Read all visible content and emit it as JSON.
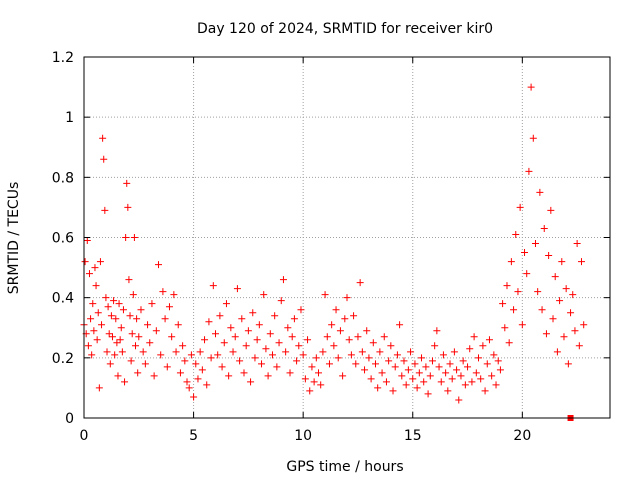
{
  "chart_data": {
    "type": "scatter",
    "title": "Day 120 of 2024, SRMTID for receiver kir0",
    "xlabel": "GPS time / hours",
    "ylabel": "SRMTID / TECUs",
    "xlim": [
      0,
      24
    ],
    "ylim": [
      0,
      1.2
    ],
    "xticks": [
      0,
      5,
      10,
      15,
      20
    ],
    "xtick_labels": [
      "0",
      "5",
      "10",
      "15",
      "20"
    ],
    "yticks": [
      0,
      0.2,
      0.4,
      0.6,
      0.8,
      1,
      1.2
    ],
    "ytick_labels": [
      "0",
      "0.2",
      "0.4",
      "0.6",
      "0.8",
      "1",
      "1.2"
    ],
    "grid": true,
    "marker": "+",
    "series": [
      {
        "name": "SRMTID",
        "color": "#ff0000",
        "points": [
          [
            0.0,
            0.31
          ],
          [
            0.05,
            0.52
          ],
          [
            0.1,
            0.28
          ],
          [
            0.15,
            0.59
          ],
          [
            0.2,
            0.24
          ],
          [
            0.25,
            0.48
          ],
          [
            0.3,
            0.33
          ],
          [
            0.35,
            0.21
          ],
          [
            0.4,
            0.38
          ],
          [
            0.45,
            0.29
          ],
          [
            0.5,
            0.5
          ],
          [
            0.55,
            0.44
          ],
          [
            0.6,
            0.26
          ],
          [
            0.65,
            0.35
          ],
          [
            0.7,
            0.1
          ],
          [
            0.75,
            0.52
          ],
          [
            0.8,
            0.31
          ],
          [
            0.85,
            0.93
          ],
          [
            0.9,
            0.86
          ],
          [
            0.95,
            0.69
          ],
          [
            1.0,
            0.4
          ],
          [
            1.05,
            0.22
          ],
          [
            1.1,
            0.37
          ],
          [
            1.15,
            0.28
          ],
          [
            1.2,
            0.18
          ],
          [
            1.25,
            0.34
          ],
          [
            1.3,
            0.27
          ],
          [
            1.35,
            0.39
          ],
          [
            1.4,
            0.21
          ],
          [
            1.45,
            0.33
          ],
          [
            1.5,
            0.25
          ],
          [
            1.55,
            0.14
          ],
          [
            1.6,
            0.38
          ],
          [
            1.65,
            0.26
          ],
          [
            1.7,
            0.3
          ],
          [
            1.75,
            0.22
          ],
          [
            1.8,
            0.36
          ],
          [
            1.85,
            0.12
          ],
          [
            1.9,
            0.6
          ],
          [
            1.95,
            0.78
          ],
          [
            2.0,
            0.7
          ],
          [
            2.05,
            0.46
          ],
          [
            2.1,
            0.34
          ],
          [
            2.15,
            0.19
          ],
          [
            2.2,
            0.28
          ],
          [
            2.25,
            0.41
          ],
          [
            2.3,
            0.6
          ],
          [
            2.35,
            0.24
          ],
          [
            2.4,
            0.33
          ],
          [
            2.45,
            0.15
          ],
          [
            2.5,
            0.27
          ],
          [
            2.6,
            0.36
          ],
          [
            2.7,
            0.22
          ],
          [
            2.8,
            0.18
          ],
          [
            2.9,
            0.31
          ],
          [
            3.0,
            0.25
          ],
          [
            3.1,
            0.38
          ],
          [
            3.2,
            0.14
          ],
          [
            3.3,
            0.29
          ],
          [
            3.4,
            0.51
          ],
          [
            3.5,
            0.21
          ],
          [
            3.6,
            0.42
          ],
          [
            3.7,
            0.33
          ],
          [
            3.8,
            0.17
          ],
          [
            3.9,
            0.37
          ],
          [
            4.0,
            0.27
          ],
          [
            4.1,
            0.41
          ],
          [
            4.2,
            0.22
          ],
          [
            4.3,
            0.31
          ],
          [
            4.4,
            0.15
          ],
          [
            4.5,
            0.24
          ],
          [
            4.6,
            0.19
          ],
          [
            4.7,
            0.12
          ],
          [
            4.8,
            0.1
          ],
          [
            4.9,
            0.21
          ],
          [
            5.0,
            0.07
          ],
          [
            5.1,
            0.18
          ],
          [
            5.2,
            0.13
          ],
          [
            5.3,
            0.22
          ],
          [
            5.4,
            0.16
          ],
          [
            5.5,
            0.26
          ],
          [
            5.6,
            0.11
          ],
          [
            5.7,
            0.32
          ],
          [
            5.8,
            0.2
          ],
          [
            5.9,
            0.44
          ],
          [
            6.0,
            0.28
          ],
          [
            6.1,
            0.21
          ],
          [
            6.2,
            0.34
          ],
          [
            6.3,
            0.17
          ],
          [
            6.4,
            0.25
          ],
          [
            6.5,
            0.38
          ],
          [
            6.6,
            0.14
          ],
          [
            6.7,
            0.3
          ],
          [
            6.8,
            0.22
          ],
          [
            6.9,
            0.27
          ],
          [
            7.0,
            0.43
          ],
          [
            7.1,
            0.19
          ],
          [
            7.2,
            0.33
          ],
          [
            7.3,
            0.15
          ],
          [
            7.4,
            0.24
          ],
          [
            7.5,
            0.29
          ],
          [
            7.6,
            0.12
          ],
          [
            7.7,
            0.35
          ],
          [
            7.8,
            0.2
          ],
          [
            7.9,
            0.26
          ],
          [
            8.0,
            0.31
          ],
          [
            8.1,
            0.18
          ],
          [
            8.2,
            0.41
          ],
          [
            8.3,
            0.23
          ],
          [
            8.4,
            0.14
          ],
          [
            8.5,
            0.28
          ],
          [
            8.6,
            0.21
          ],
          [
            8.7,
            0.34
          ],
          [
            8.8,
            0.17
          ],
          [
            8.9,
            0.25
          ],
          [
            9.0,
            0.39
          ],
          [
            9.1,
            0.46
          ],
          [
            9.2,
            0.22
          ],
          [
            9.3,
            0.3
          ],
          [
            9.4,
            0.15
          ],
          [
            9.5,
            0.27
          ],
          [
            9.6,
            0.33
          ],
          [
            9.7,
            0.19
          ],
          [
            9.8,
            0.24
          ],
          [
            9.9,
            0.36
          ],
          [
            10.0,
            0.21
          ],
          [
            10.1,
            0.13
          ],
          [
            10.2,
            0.26
          ],
          [
            10.3,
            0.09
          ],
          [
            10.4,
            0.17
          ],
          [
            10.5,
            0.12
          ],
          [
            10.6,
            0.2
          ],
          [
            10.7,
            0.15
          ],
          [
            10.8,
            0.11
          ],
          [
            10.9,
            0.22
          ],
          [
            11.0,
            0.41
          ],
          [
            11.1,
            0.27
          ],
          [
            11.2,
            0.18
          ],
          [
            11.3,
            0.31
          ],
          [
            11.4,
            0.24
          ],
          [
            11.5,
            0.36
          ],
          [
            11.6,
            0.2
          ],
          [
            11.7,
            0.29
          ],
          [
            11.8,
            0.14
          ],
          [
            11.9,
            0.33
          ],
          [
            12.0,
            0.4
          ],
          [
            12.1,
            0.26
          ],
          [
            12.2,
            0.21
          ],
          [
            12.3,
            0.34
          ],
          [
            12.4,
            0.18
          ],
          [
            12.5,
            0.27
          ],
          [
            12.6,
            0.45
          ],
          [
            12.7,
            0.22
          ],
          [
            12.8,
            0.16
          ],
          [
            12.9,
            0.29
          ],
          [
            13.0,
            0.2
          ],
          [
            13.1,
            0.13
          ],
          [
            13.2,
            0.25
          ],
          [
            13.3,
            0.18
          ],
          [
            13.4,
            0.1
          ],
          [
            13.5,
            0.22
          ],
          [
            13.6,
            0.15
          ],
          [
            13.7,
            0.27
          ],
          [
            13.8,
            0.12
          ],
          [
            13.9,
            0.19
          ],
          [
            14.0,
            0.24
          ],
          [
            14.1,
            0.09
          ],
          [
            14.2,
            0.17
          ],
          [
            14.3,
            0.21
          ],
          [
            14.4,
            0.31
          ],
          [
            14.5,
            0.14
          ],
          [
            14.6,
            0.19
          ],
          [
            14.7,
            0.11
          ],
          [
            14.8,
            0.16
          ],
          [
            14.9,
            0.22
          ],
          [
            15.0,
            0.13
          ],
          [
            15.1,
            0.18
          ],
          [
            15.2,
            0.1
          ],
          [
            15.3,
            0.15
          ],
          [
            15.4,
            0.2
          ],
          [
            15.5,
            0.12
          ],
          [
            15.6,
            0.17
          ],
          [
            15.7,
            0.08
          ],
          [
            15.8,
            0.14
          ],
          [
            15.9,
            0.19
          ],
          [
            16.0,
            0.24
          ],
          [
            16.1,
            0.29
          ],
          [
            16.2,
            0.17
          ],
          [
            16.3,
            0.12
          ],
          [
            16.4,
            0.21
          ],
          [
            16.5,
            0.15
          ],
          [
            16.6,
            0.09
          ],
          [
            16.7,
            0.18
          ],
          [
            16.8,
            0.13
          ],
          [
            16.9,
            0.22
          ],
          [
            17.0,
            0.16
          ],
          [
            17.1,
            0.06
          ],
          [
            17.2,
            0.14
          ],
          [
            17.3,
            0.19
          ],
          [
            17.4,
            0.11
          ],
          [
            17.5,
            0.17
          ],
          [
            17.6,
            0.23
          ],
          [
            17.7,
            0.12
          ],
          [
            17.8,
            0.27
          ],
          [
            17.9,
            0.15
          ],
          [
            18.0,
            0.2
          ],
          [
            18.1,
            0.13
          ],
          [
            18.2,
            0.24
          ],
          [
            18.3,
            0.09
          ],
          [
            18.4,
            0.18
          ],
          [
            18.5,
            0.26
          ],
          [
            18.6,
            0.14
          ],
          [
            18.7,
            0.21
          ],
          [
            18.8,
            0.11
          ],
          [
            18.9,
            0.19
          ],
          [
            19.0,
            0.16
          ],
          [
            19.1,
            0.38
          ],
          [
            19.2,
            0.3
          ],
          [
            19.3,
            0.44
          ],
          [
            19.4,
            0.25
          ],
          [
            19.5,
            0.52
          ],
          [
            19.6,
            0.36
          ],
          [
            19.7,
            0.61
          ],
          [
            19.8,
            0.42
          ],
          [
            19.9,
            0.7
          ],
          [
            20.0,
            0.31
          ],
          [
            20.1,
            0.55
          ],
          [
            20.2,
            0.48
          ],
          [
            20.3,
            0.82
          ],
          [
            20.4,
            1.1
          ],
          [
            20.5,
            0.93
          ],
          [
            20.6,
            0.58
          ],
          [
            20.7,
            0.42
          ],
          [
            20.8,
            0.75
          ],
          [
            20.9,
            0.36
          ],
          [
            21.0,
            0.63
          ],
          [
            21.1,
            0.28
          ],
          [
            21.2,
            0.54
          ],
          [
            21.3,
            0.69
          ],
          [
            21.4,
            0.33
          ],
          [
            21.5,
            0.47
          ],
          [
            21.6,
            0.22
          ],
          [
            21.7,
            0.39
          ],
          [
            21.8,
            0.52
          ],
          [
            21.9,
            0.27
          ],
          [
            22.0,
            0.43
          ],
          [
            22.1,
            0.18
          ],
          [
            22.2,
            0.35
          ],
          [
            22.3,
            0.41
          ],
          [
            22.4,
            0.29
          ],
          [
            22.5,
            0.58
          ],
          [
            22.6,
            0.24
          ],
          [
            22.7,
            0.52
          ],
          [
            22.8,
            0.31
          ]
        ]
      }
    ],
    "special_points": [
      {
        "x": 22.2,
        "y": 0.0,
        "marker": "square",
        "color": "#ff0000"
      }
    ]
  }
}
